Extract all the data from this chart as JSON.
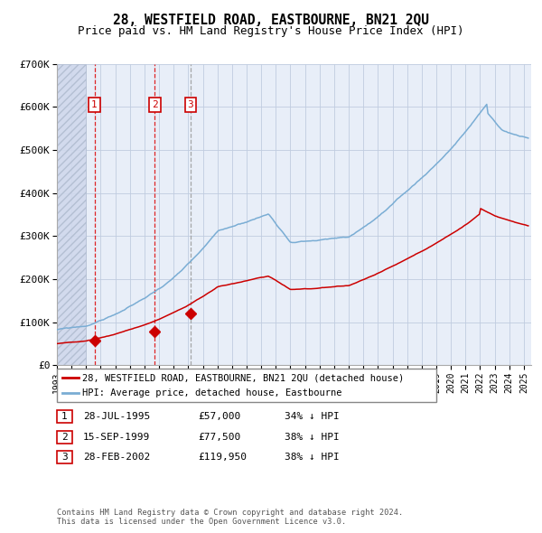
{
  "title": "28, WESTFIELD ROAD, EASTBOURNE, BN21 2QU",
  "subtitle": "Price paid vs. HM Land Registry's House Price Index (HPI)",
  "sale_label": "28, WESTFIELD ROAD, EASTBOURNE, BN21 2QU (detached house)",
  "hpi_label": "HPI: Average price, detached house, Eastbourne",
  "sale_color": "#cc0000",
  "hpi_color": "#7aadd4",
  "marker_color": "#cc0000",
  "background_color": "#e8eef8",
  "grid_color": "#c0cce0",
  "purchases": [
    {
      "date_num": 1995.57,
      "price": 57000,
      "label": "1"
    },
    {
      "date_num": 1999.71,
      "price": 77500,
      "label": "2"
    },
    {
      "date_num": 2002.16,
      "price": 119950,
      "label": "3"
    }
  ],
  "table_rows": [
    {
      "num": "1",
      "date": "28-JUL-1995",
      "price": "£57,000",
      "pct": "34% ↓ HPI"
    },
    {
      "num": "2",
      "date": "15-SEP-1999",
      "price": "£77,500",
      "pct": "38% ↓ HPI"
    },
    {
      "num": "3",
      "date": "28-FEB-2002",
      "price": "£119,950",
      "pct": "38% ↓ HPI"
    }
  ],
  "footer": "Contains HM Land Registry data © Crown copyright and database right 2024.\nThis data is licensed under the Open Government Licence v3.0.",
  "ylim": [
    0,
    700000
  ],
  "yticks": [
    0,
    100000,
    200000,
    300000,
    400000,
    500000,
    600000,
    700000
  ],
  "ytick_labels": [
    "£0",
    "£100K",
    "£200K",
    "£300K",
    "£400K",
    "£500K",
    "£600K",
    "£700K"
  ],
  "xlim_start": 1993.0,
  "xlim_end": 2025.5,
  "hatch_end": 1995.0
}
